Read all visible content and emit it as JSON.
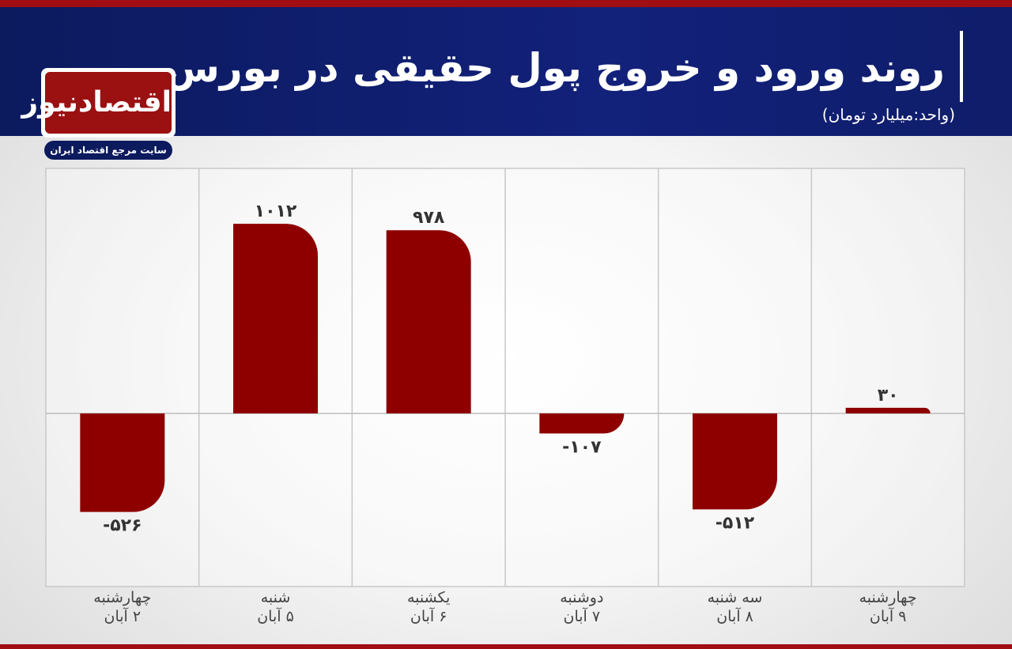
{
  "chart_data": {
    "type": "bar",
    "title": "روند ورود و خروج پول حقیقی در بورس",
    "subtitle": "(واحد:میلیارد تومان)",
    "categories": [
      "چهارشنبه\n۲ آبان",
      "شنبه\n۵ آبان",
      "یکشنبه\n۶ آبان",
      "دوشنبه\n۷ آبان",
      "سه شنبه\n۸ آبان",
      "چهارشنبه\n۹ آبان"
    ],
    "values": [
      -526,
      1012,
      978,
      -107,
      -512,
      30
    ],
    "value_labels": [
      "-۵۲۶",
      "۱۰۱۲",
      "۹۷۸",
      "-۱۰۷",
      "-۵۱۲",
      "۳۰"
    ],
    "color": "#8e0000",
    "ylim": [
      -924,
      1308
    ],
    "grid": true
  },
  "logo": {
    "name": "اقتصادنیوز",
    "tagline": "سایت مرجع اقتصاد ایران"
  }
}
